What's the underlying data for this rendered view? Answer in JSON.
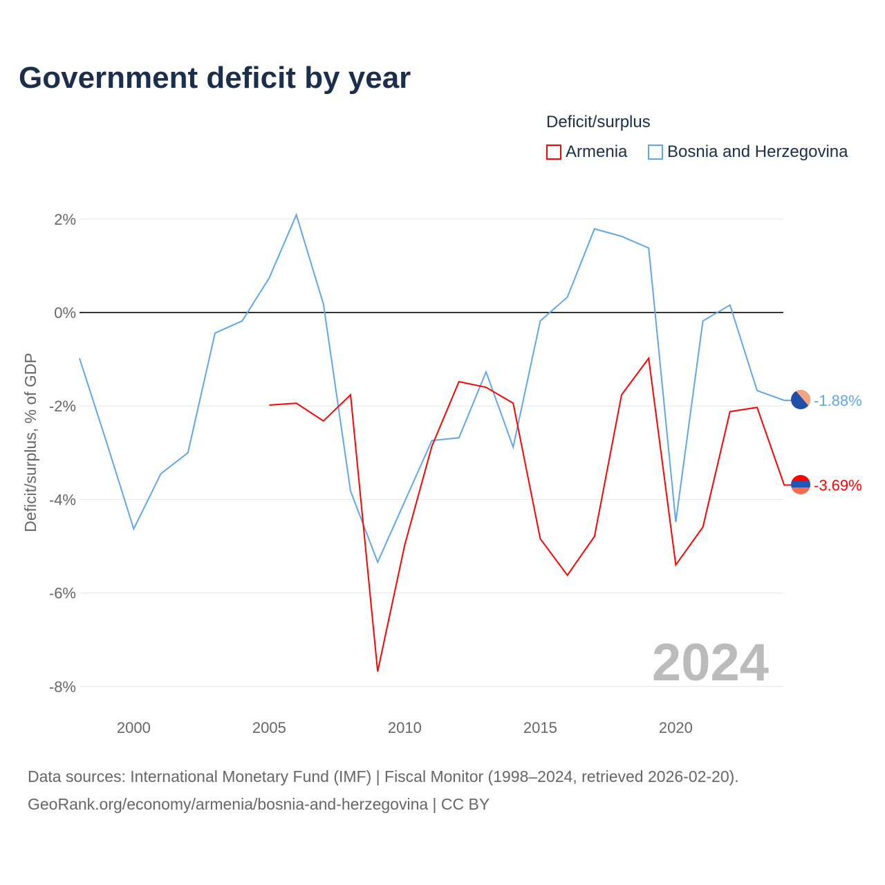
{
  "title": "Government deficit by year",
  "legend": {
    "title": "Deficit/surplus",
    "items": [
      "Armenia",
      "Bosnia and Herzegovina"
    ]
  },
  "year_label": "2024",
  "footer": {
    "line1": "Data sources: International Monetary Fund (IMF) | Fiscal Monitor (1998–2024, retrieved 2026-02-20).",
    "line2": "GeoRank.org/economy/armenia/bosnia-and-herzegovina | CC BY"
  },
  "chart_data": {
    "type": "line",
    "title": "Government deficit by year",
    "xlabel": "",
    "ylabel": "Deficit/surplus, % of GDP",
    "xlim": [
      1998,
      2024
    ],
    "ylim": [
      -8.3,
      2.5
    ],
    "xticks": [
      2000,
      2005,
      2010,
      2015,
      2020
    ],
    "yticks": [
      2,
      0,
      -2,
      -4,
      -6,
      -8
    ],
    "ytick_labels": [
      "2%",
      "0%",
      "-2%",
      "-4%",
      "-6%",
      "-8%"
    ],
    "series": [
      {
        "name": "Armenia",
        "color": "#ff0000",
        "end_label": "-3.69%",
        "x": [
          2005,
          2006,
          2007,
          2008,
          2009,
          2010,
          2011,
          2012,
          2013,
          2014,
          2015,
          2016,
          2017,
          2018,
          2019,
          2020,
          2021,
          2022,
          2023,
          2024
        ],
        "y": [
          -1.98,
          -1.94,
          -2.32,
          -1.76,
          -7.68,
          -4.97,
          -2.86,
          -1.48,
          -1.6,
          -1.94,
          -4.84,
          -5.62,
          -4.79,
          -1.76,
          -0.98,
          -5.4,
          -4.59,
          -2.12,
          -2.03,
          -3.69
        ]
      },
      {
        "name": "Bosnia and Herzegovina",
        "color": "#5fa8e8",
        "end_label": "-1.88%",
        "x": [
          1998,
          1999,
          2000,
          2001,
          2002,
          2003,
          2004,
          2005,
          2006,
          2007,
          2008,
          2009,
          2010,
          2011,
          2012,
          2013,
          2014,
          2015,
          2016,
          2017,
          2018,
          2019,
          2020,
          2021,
          2022,
          2023,
          2024
        ],
        "y": [
          -0.98,
          -2.78,
          -4.63,
          -3.45,
          -3.0,
          -0.44,
          -0.18,
          0.74,
          2.09,
          0.18,
          -3.82,
          -5.34,
          -4.04,
          -2.74,
          -2.68,
          -1.27,
          -2.88,
          -0.18,
          0.33,
          1.79,
          1.63,
          1.38,
          -4.48,
          -0.18,
          0.16,
          -1.67,
          -1.88
        ]
      }
    ]
  }
}
